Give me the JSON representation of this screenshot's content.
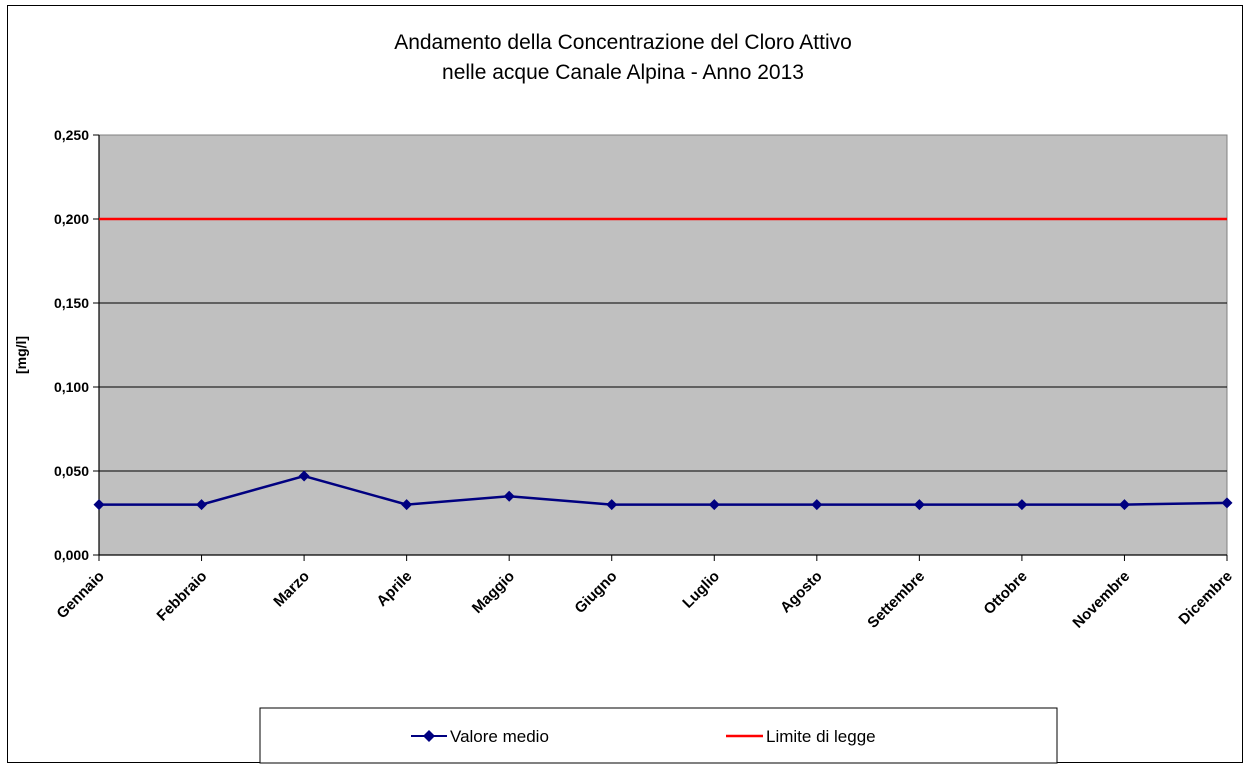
{
  "chart_data": {
    "type": "line",
    "title_lines": [
      "Andamento della Concentrazione del Cloro Attivo",
      "nelle acque Canale Alpina - Anno 2013"
    ],
    "xlabel": "",
    "ylabel": "[mg/l]",
    "categories": [
      "Gennaio",
      "Febbraio",
      "Marzo",
      "Aprile",
      "Maggio",
      "Giugno",
      "Luglio",
      "Agosto",
      "Settembre",
      "Ottobre",
      "Novembre",
      "Dicembre"
    ],
    "ylim": [
      0,
      0.25
    ],
    "yticks": [
      "0,000",
      "0,050",
      "0,100",
      "0,150",
      "0,200",
      "0,250"
    ],
    "grid": true,
    "plot_background": "#c0c0c0",
    "legend_position": "bottom",
    "series": [
      {
        "name": "Valore medio",
        "color": "#000080",
        "marker": "diamond",
        "values": [
          0.03,
          0.03,
          0.047,
          0.03,
          0.035,
          0.03,
          0.03,
          0.03,
          0.03,
          0.03,
          0.03,
          0.031
        ]
      },
      {
        "name": "Limite di legge",
        "color": "#ff0000",
        "marker": "none",
        "values": [
          0.2,
          0.2,
          0.2,
          0.2,
          0.2,
          0.2,
          0.2,
          0.2,
          0.2,
          0.2,
          0.2,
          0.2
        ]
      }
    ]
  }
}
